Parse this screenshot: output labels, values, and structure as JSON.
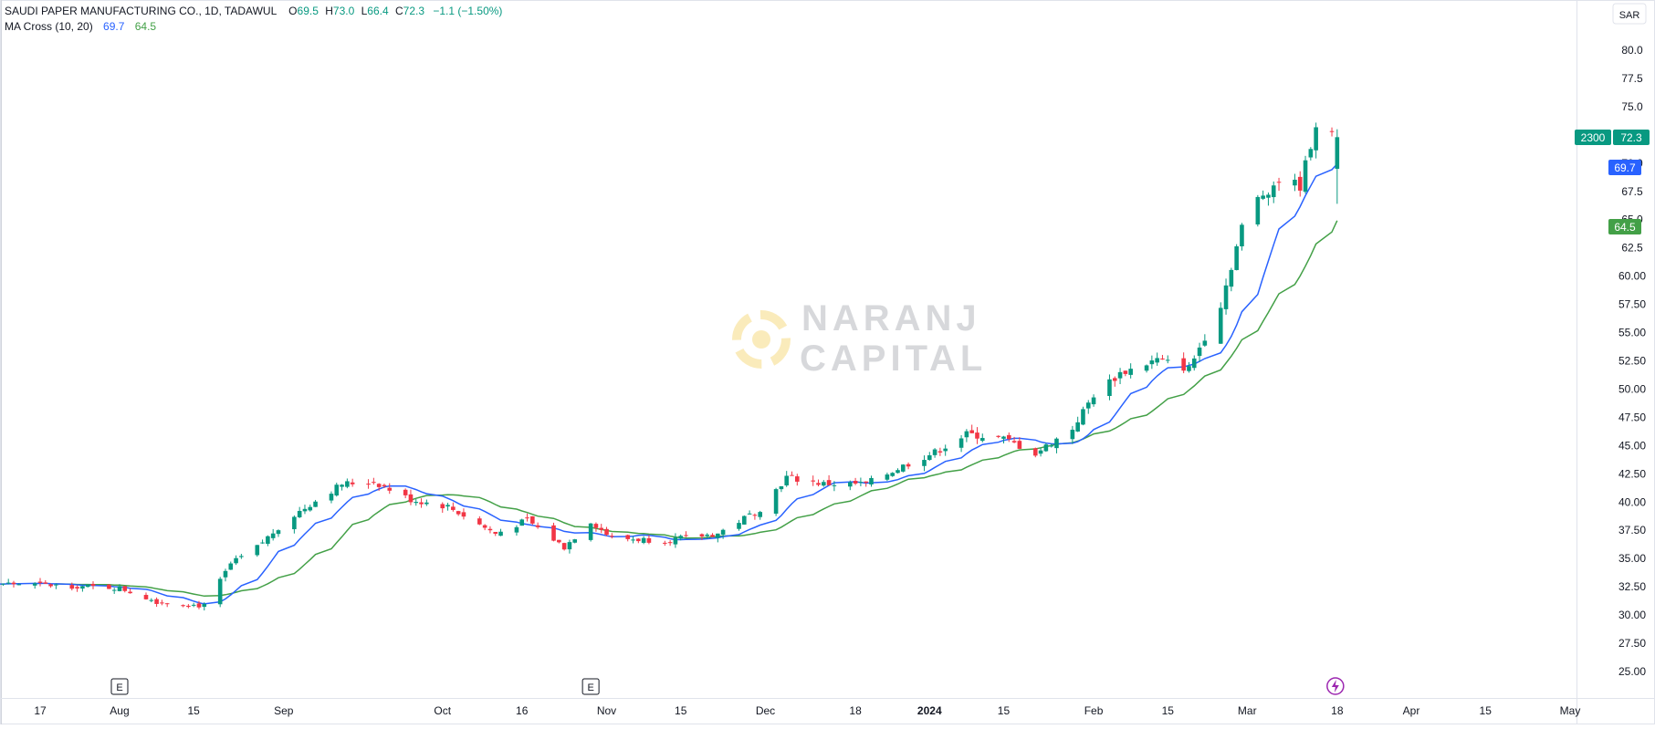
{
  "header": {
    "symbol": "SAUDI PAPER MANUFACTURING CO., 1D, TADAWUL",
    "ohlc": {
      "O": "69.5",
      "H": "73.0",
      "L": "66.4",
      "C": "72.3"
    },
    "change": "−1.1 (−1.50%)",
    "indicator": "MA Cross (10, 20)",
    "ma_fast_value": "69.7",
    "ma_slow_value": "64.5",
    "currency": "SAR"
  },
  "watermark": {
    "line1": "NARANJ",
    "line2": "CAPITAL"
  },
  "price_tags": {
    "volume": "2300",
    "last": "72.3",
    "ma_fast": "69.7",
    "ma_slow": "64.5"
  },
  "markers": {
    "earnings": "E"
  },
  "colors": {
    "up": "#089981",
    "down": "#f23645",
    "ma_fast": "#2962ff",
    "ma_slow": "#43a047",
    "tag_last": "#089981",
    "tag_fast": "#2962ff",
    "tag_slow": "#43a047",
    "watermark": "#f7c948"
  },
  "chart_data": {
    "type": "candlestick",
    "title": "SAUDI PAPER MANUFACTURING CO., 1D, TADAWUL",
    "ylim": [
      23.5,
      82.5
    ],
    "y_ticks": [
      "25.00",
      "27.50",
      "30.00",
      "32.50",
      "35.00",
      "37.50",
      "40.00",
      "42.50",
      "45.00",
      "47.50",
      "50.00",
      "52.50",
      "55.00",
      "57.50",
      "60.00",
      "62.5",
      "65.0",
      "67.5",
      "70.0",
      "72.5",
      "75.0",
      "77.5",
      "80.0"
    ],
    "x_ticks": [
      {
        "label": "17",
        "date": "2023-07-17"
      },
      {
        "label": "Aug",
        "date": "2023-08-01"
      },
      {
        "label": "15",
        "date": "2023-08-15"
      },
      {
        "label": "Sep",
        "date": "2023-09-01"
      },
      {
        "label": "Oct",
        "date": "2023-10-01"
      },
      {
        "label": "16",
        "date": "2023-10-16"
      },
      {
        "label": "Nov",
        "date": "2023-11-01"
      },
      {
        "label": "15",
        "date": "2023-11-15"
      },
      {
        "label": "Dec",
        "date": "2023-12-01"
      },
      {
        "label": "18",
        "date": "2023-12-18"
      },
      {
        "label": "2024",
        "date": "2024-01-01",
        "bold": true
      },
      {
        "label": "15",
        "date": "2024-01-15"
      },
      {
        "label": "Feb",
        "date": "2024-02-01"
      },
      {
        "label": "15",
        "date": "2024-02-15"
      },
      {
        "label": "Mar",
        "date": "2024-03-01"
      },
      {
        "label": "18",
        "date": "2024-03-18"
      },
      {
        "label": "Apr",
        "date": "2024-04-01"
      },
      {
        "label": "15",
        "date": "2024-04-15"
      },
      {
        "label": "May",
        "date": "2024-05-01"
      }
    ],
    "earnings_events": [
      "2023-08-01",
      "2023-10-29"
    ],
    "price_anchors": [
      {
        "date": "2023-07-10",
        "close": 32.8
      },
      {
        "date": "2023-08-01",
        "close": 32.4
      },
      {
        "date": "2023-08-08",
        "close": 31.2
      },
      {
        "date": "2023-08-17",
        "close": 30.8
      },
      {
        "date": "2023-08-22",
        "close": 34.5
      },
      {
        "date": "2023-08-27",
        "close": 36.0
      },
      {
        "date": "2023-09-01",
        "close": 38.2
      },
      {
        "date": "2023-09-06",
        "close": 39.8
      },
      {
        "date": "2023-09-12",
        "close": 41.6
      },
      {
        "date": "2023-09-18",
        "close": 41.8
      },
      {
        "date": "2023-09-25",
        "close": 40.2
      },
      {
        "date": "2023-10-02",
        "close": 39.6
      },
      {
        "date": "2023-10-11",
        "close": 37.2
      },
      {
        "date": "2023-10-17",
        "close": 38.4
      },
      {
        "date": "2023-10-24",
        "close": 36.0
      },
      {
        "date": "2023-10-29",
        "close": 38.3
      },
      {
        "date": "2023-11-02",
        "close": 36.8
      },
      {
        "date": "2023-11-12",
        "close": 36.6
      },
      {
        "date": "2023-11-22",
        "close": 37.2
      },
      {
        "date": "2023-11-30",
        "close": 39.4
      },
      {
        "date": "2023-12-05",
        "close": 42.2
      },
      {
        "date": "2023-12-12",
        "close": 41.6
      },
      {
        "date": "2023-12-20",
        "close": 41.6
      },
      {
        "date": "2023-12-27",
        "close": 43.2
      },
      {
        "date": "2024-01-02",
        "close": 44.4
      },
      {
        "date": "2024-01-08",
        "close": 46.0
      },
      {
        "date": "2024-01-15",
        "close": 45.6
      },
      {
        "date": "2024-01-21",
        "close": 44.3
      },
      {
        "date": "2024-01-28",
        "close": 46.5
      },
      {
        "date": "2024-02-01",
        "close": 49.5
      },
      {
        "date": "2024-02-06",
        "close": 51.4
      },
      {
        "date": "2024-02-13",
        "close": 52.6
      },
      {
        "date": "2024-02-19",
        "close": 51.8
      },
      {
        "date": "2024-02-25",
        "close": 57.5
      },
      {
        "date": "2024-03-01",
        "close": 66.0
      },
      {
        "date": "2024-03-07",
        "close": 68.5
      },
      {
        "date": "2024-03-11",
        "close": 68.0
      },
      {
        "date": "2024-03-14",
        "close": 73.5
      },
      {
        "date": "2024-03-17",
        "close": 72.3
      }
    ],
    "last_bar": {
      "date": "2024-03-18",
      "open": 69.5,
      "high": 73.0,
      "low": 66.4,
      "close": 72.3
    },
    "series": [
      {
        "name": "MA Cross (10, 20)",
        "type": "ma",
        "period": 10,
        "last": 69.7
      },
      {
        "name": "MA Cross (10, 20)",
        "type": "ma",
        "period": 20,
        "last": 64.5
      }
    ]
  }
}
